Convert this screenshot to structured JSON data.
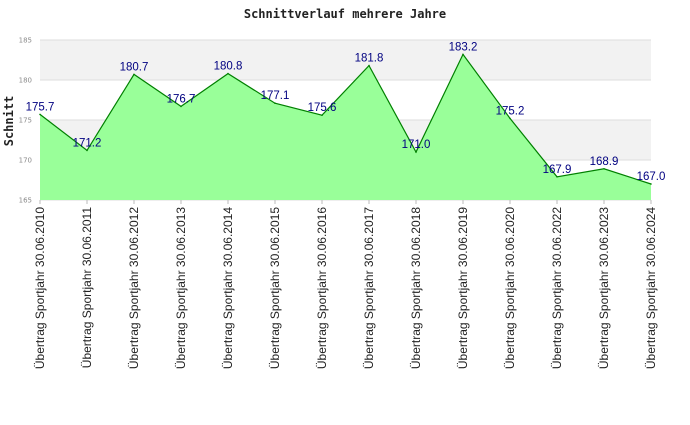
{
  "chart_data": {
    "type": "area",
    "title": "Schnittverlauf mehrere Jahre",
    "ylabel": "Schnitt",
    "xlabel": "",
    "ylim": [
      165,
      185
    ],
    "yticks": [
      "165",
      "170",
      "175",
      "180",
      "185"
    ],
    "grid": true,
    "legend": "none",
    "colors": {
      "fill": "#99ff99",
      "line": "#008000",
      "band": "#f2f2f2",
      "grid": "#dddddd",
      "data_label": "#000080"
    },
    "categories": [
      "Übertrag Sportjahr 30.06.2010",
      "Übertrag Sportjahr 30.06.2011",
      "Übertrag Sportjahr 30.06.2012",
      "Übertrag Sportjahr 30.06.2013",
      "Übertrag Sportjahr 30.06.2014",
      "Übertrag Sportjahr 30.06.2015",
      "Übertrag Sportjahr 30.06.2016",
      "Übertrag Sportjahr 30.06.2017",
      "Übertrag Sportjahr 30.06.2018",
      "Übertrag Sportjahr 30.06.2019",
      "Übertrag Sportjahr 30.06.2020",
      "Übertrag Sportjahr 30.06.2022",
      "Übertrag Sportjahr 30.06.2023",
      "Übertrag Sportjahr 30.06.2024"
    ],
    "values": [
      175.7,
      171.2,
      180.7,
      176.7,
      180.8,
      177.1,
      175.6,
      181.8,
      171.0,
      183.2,
      175.2,
      167.9,
      168.9,
      167.0
    ],
    "value_labels": [
      "175.7",
      "171.2",
      "180.7",
      "176.7",
      "180.8",
      "177.1",
      "175.6",
      "181.8",
      "171.0",
      "183.2",
      "175.2",
      "167.9",
      "168.9",
      "167.0"
    ]
  }
}
